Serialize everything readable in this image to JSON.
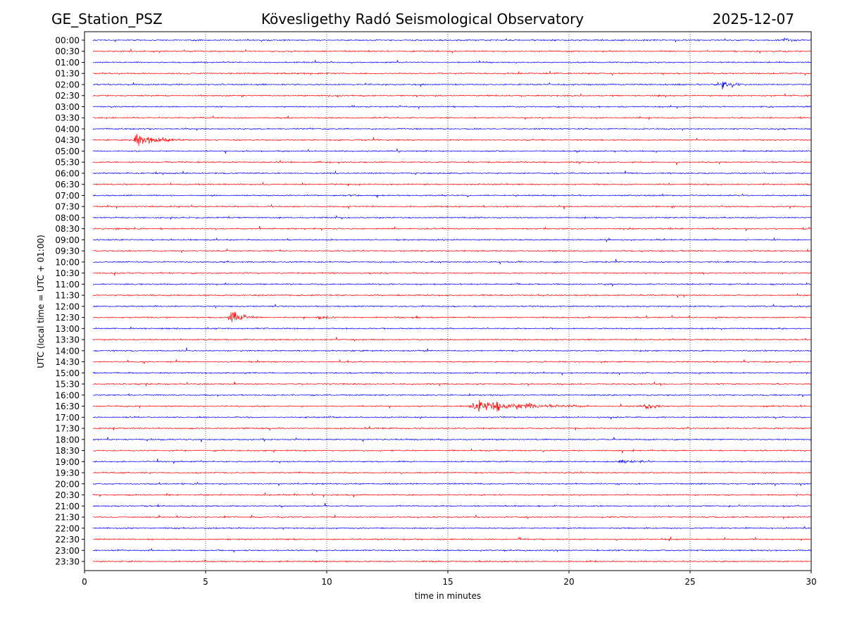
{
  "chart_data": {
    "type": "line",
    "title_left": "GE_Station_PSZ",
    "title": "Kövesligethy Radó Seismological Observatory",
    "title_right": "2025-12-07",
    "xlabel": "time in minutes",
    "ylabel": "UTC (local time = UTC + 01:00)",
    "xlim": [
      0,
      30
    ],
    "xticks": [
      "0",
      "5",
      "10",
      "15",
      "20",
      "25",
      "30"
    ],
    "grid": "vertical dotted at x ticks",
    "series_colors": [
      "#0000ff",
      "#ff0000"
    ],
    "rows": [
      "00:00",
      "00:30",
      "01:00",
      "01:30",
      "02:00",
      "02:30",
      "03:00",
      "03:30",
      "04:00",
      "04:30",
      "05:00",
      "05:30",
      "06:00",
      "06:30",
      "07:00",
      "07:30",
      "08:00",
      "08:30",
      "09:00",
      "09:30",
      "10:00",
      "10:30",
      "11:00",
      "11:30",
      "12:00",
      "12:30",
      "13:00",
      "13:30",
      "14:00",
      "14:30",
      "15:00",
      "15:30",
      "16:00",
      "16:30",
      "17:00",
      "17:30",
      "18:00",
      "18:30",
      "19:00",
      "19:30",
      "20:00",
      "20:30",
      "21:00",
      "21:30",
      "22:00",
      "22:30",
      "23:00",
      "23:30"
    ],
    "events": [
      {
        "row": "00:00",
        "start_min": 28.8,
        "end_min": 30,
        "amplitude": 0.25
      },
      {
        "row": "01:30",
        "start_min": 4.2,
        "end_min": 4.6,
        "amplitude": 0.2
      },
      {
        "row": "02:00",
        "start_min": 26.2,
        "end_min": 27.8,
        "amplitude": 0.45
      },
      {
        "row": "04:30",
        "start_min": 1.9,
        "end_min": 4.8,
        "amplitude": 0.6
      },
      {
        "row": "12:30",
        "start_min": 5.9,
        "end_min": 7.5,
        "amplitude": 0.75
      },
      {
        "row": "12:30",
        "start_min": 9.5,
        "end_min": 11.0,
        "amplitude": 0.35
      },
      {
        "row": "16:30",
        "start_min": 15.8,
        "end_min": 22.0,
        "amplitude": 0.65
      },
      {
        "row": "16:30",
        "start_min": 23.0,
        "end_min": 25.0,
        "amplitude": 0.3
      },
      {
        "row": "19:00",
        "start_min": 22.0,
        "end_min": 23.9,
        "amplitude": 0.3
      },
      {
        "row": "22:00",
        "start_min": 29.7,
        "end_min": 30,
        "amplitude": 0.2
      }
    ]
  }
}
